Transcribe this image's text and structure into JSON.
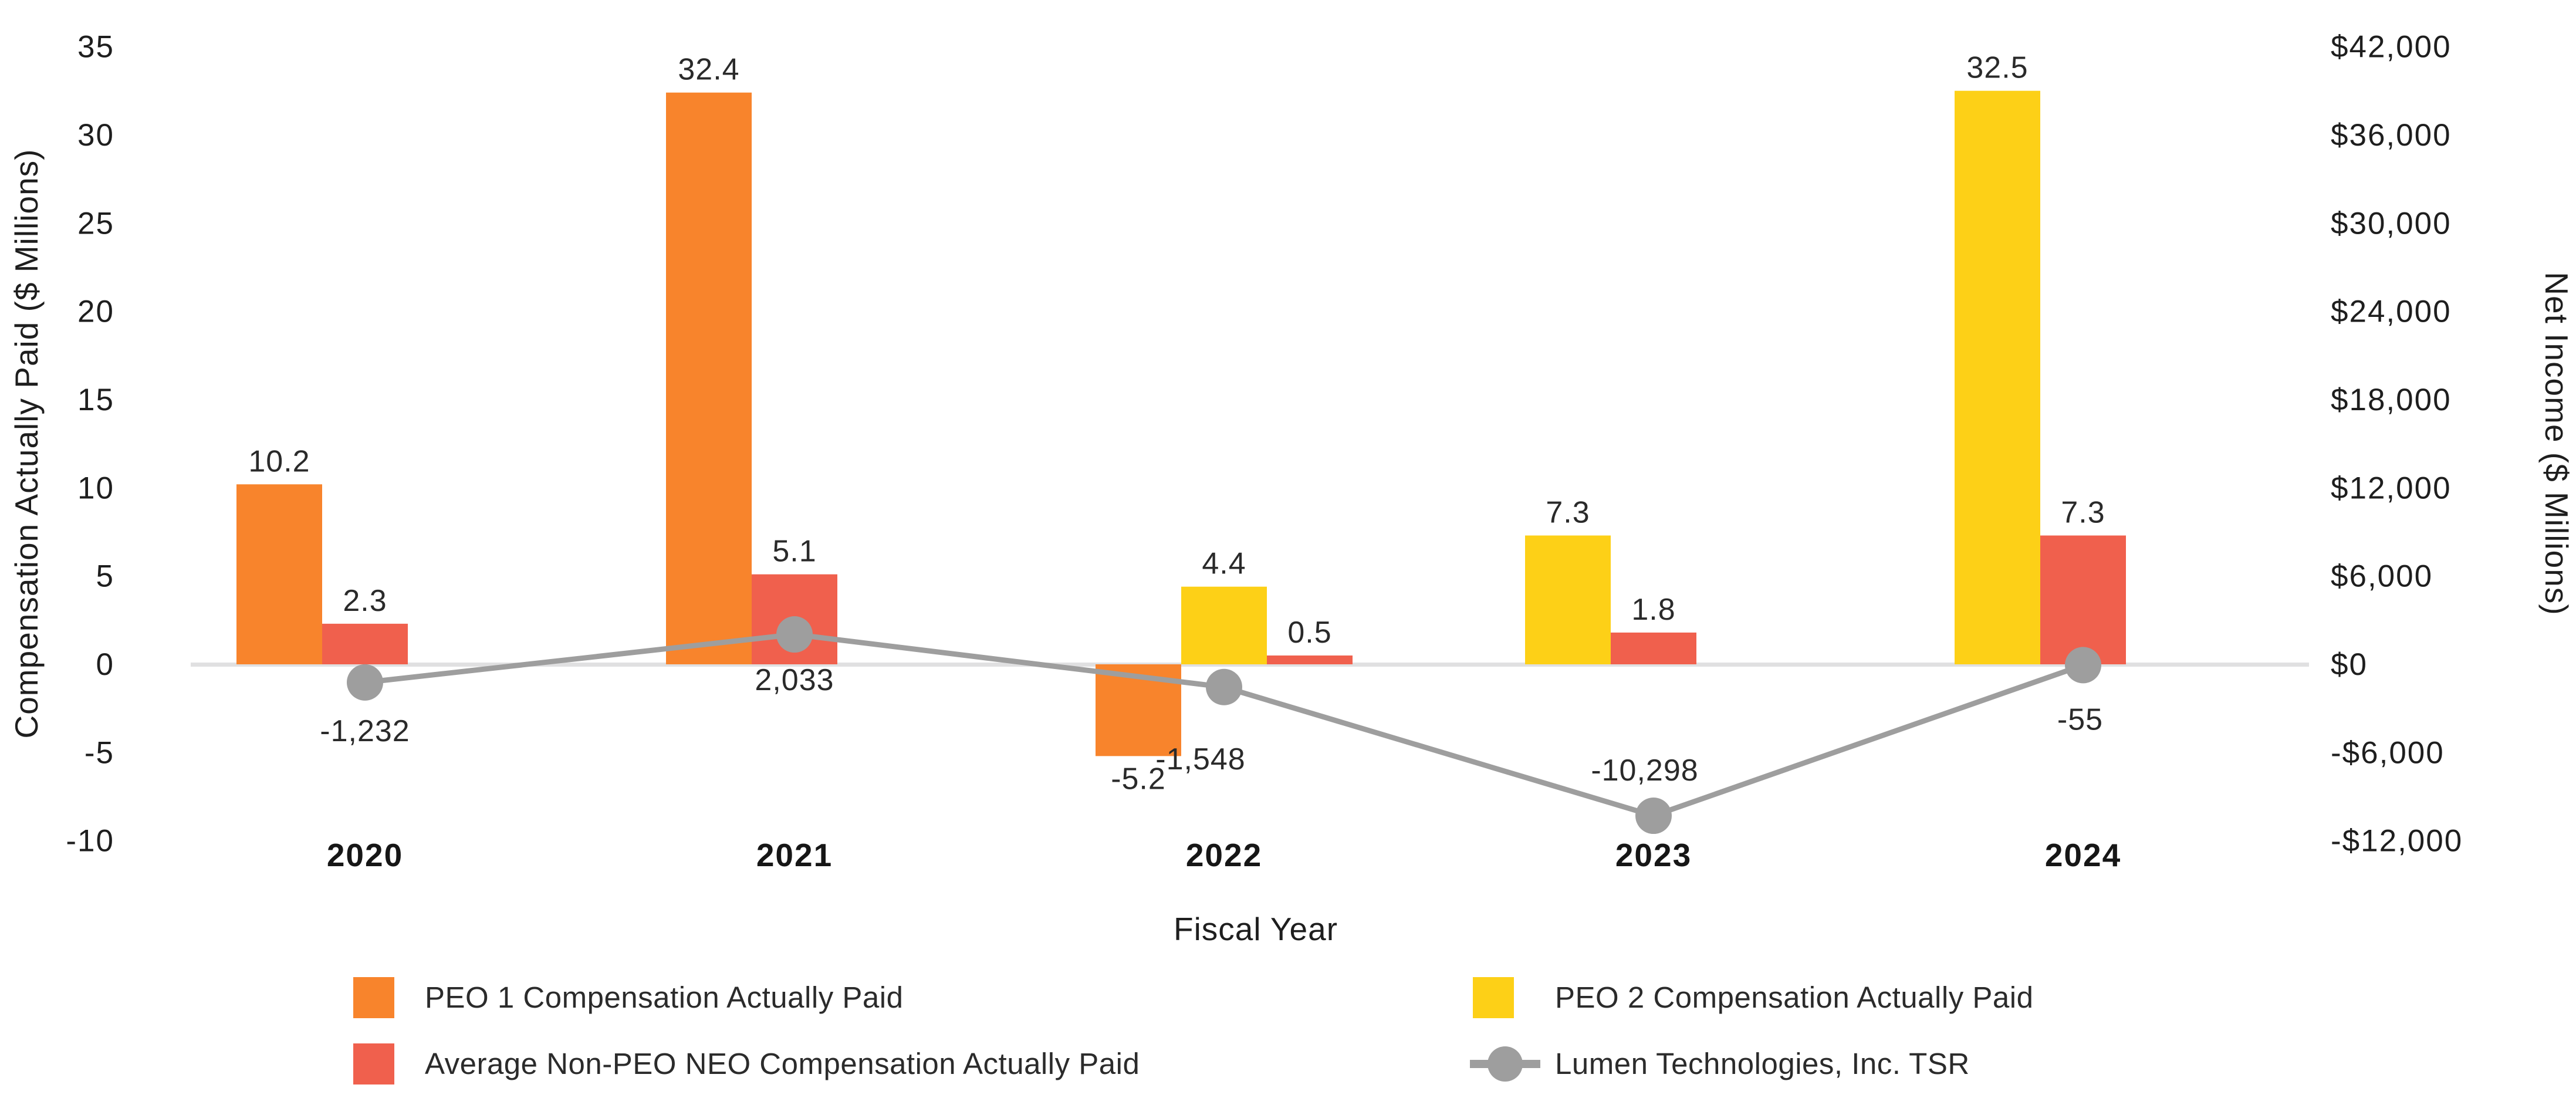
{
  "chart_data": {
    "type": "combo-bar-line",
    "title": "",
    "categories": [
      "2020",
      "2021",
      "2022",
      "2023",
      "2024"
    ],
    "xlabel": "Fiscal Year",
    "grid": false,
    "legend_position": "bottom",
    "left_axis": {
      "label": "Compensation Actually Paid ($ Millions)",
      "tick_labels": [
        "35",
        "30",
        "25",
        "20",
        "15",
        "10",
        "5",
        "0",
        "-5",
        "-10"
      ],
      "tick_values": [
        35,
        30,
        25,
        20,
        15,
        10,
        5,
        0,
        -5,
        -10
      ],
      "range": [
        -10,
        35
      ]
    },
    "right_axis": {
      "label": "Net Income ($ Millions)",
      "tick_labels": [
        "$42,000",
        "$36,000",
        "$30,000",
        "$24,000",
        "$18,000",
        "$12,000",
        "$6,000",
        "$0",
        "-$6,000",
        "-$12,000"
      ],
      "tick_values": [
        42000,
        36000,
        30000,
        24000,
        18000,
        12000,
        6000,
        0,
        -6000,
        -12000
      ],
      "range": [
        -12000,
        42000
      ]
    },
    "series": [
      {
        "name": "PEO 1 Compensation Actually Paid",
        "id": "peo1",
        "type": "bar",
        "axis": "left",
        "color": "#F8842C",
        "values": [
          10.2,
          32.4,
          -5.2,
          null,
          null
        ],
        "value_labels": [
          "10.2",
          "32.4",
          "-5.2",
          null,
          null
        ]
      },
      {
        "name": "PEO 2 Compensation Actually Paid",
        "id": "peo2",
        "type": "bar",
        "axis": "left",
        "color": "#FDD017",
        "values": [
          null,
          null,
          4.4,
          7.3,
          32.5
        ],
        "value_labels": [
          null,
          null,
          "4.4",
          "7.3",
          "32.5"
        ]
      },
      {
        "name": "Average Non-PEO NEO Compensation Actually Paid",
        "id": "neo",
        "type": "bar",
        "axis": "left",
        "color": "#F0604D",
        "values": [
          2.3,
          5.1,
          0.5,
          1.8,
          7.3
        ],
        "value_labels": [
          "2.3",
          "5.1",
          "0.5",
          "1.8",
          "7.3"
        ]
      },
      {
        "name": "Lumen Technologies, Inc. TSR",
        "id": "tsr",
        "type": "line",
        "axis": "right",
        "color": "#9E9E9E",
        "values": [
          -1232,
          2033,
          -1548,
          -10298,
          -55
        ],
        "value_labels": [
          "-1,232",
          "2,033",
          "-1,548",
          "-10,298",
          "-55"
        ],
        "label_offsets": [
          [
            0,
            100
          ],
          [
            0,
            95
          ],
          [
            -40,
            140
          ],
          [
            -15,
            -60
          ],
          [
            -5,
            110
          ]
        ]
      }
    ],
    "legend": {
      "items": [
        {
          "label": "PEO 1 Compensation Actually Paid",
          "swatch": "square",
          "color": "#F8842C"
        },
        {
          "label": "Average Non-PEO NEO Compensation Actually Paid",
          "swatch": "square",
          "color": "#F0604D"
        },
        {
          "label": "PEO 2 Compensation Actually Paid",
          "swatch": "square",
          "color": "#FDD017"
        },
        {
          "label": "Lumen Technologies, Inc. TSR",
          "swatch": "line-marker",
          "color": "#9E9E9E"
        }
      ]
    },
    "colors": {
      "baseline": "#E0E0E1",
      "text": "#1E1E1E"
    }
  }
}
